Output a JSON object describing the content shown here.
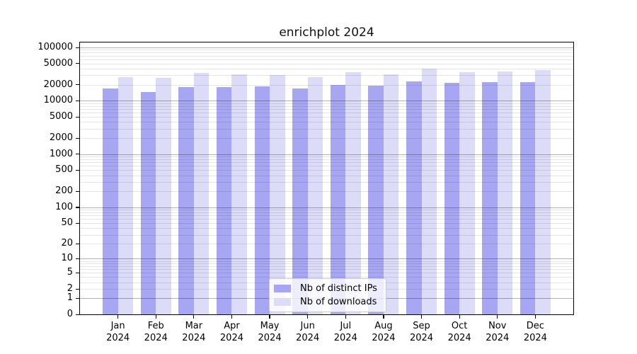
{
  "figure": {
    "title": "enrichplot 2024"
  },
  "chart_data": {
    "type": "bar",
    "title": "enrichplot 2024",
    "subtitle": "",
    "xlabel": "",
    "ylabel": "",
    "scale": "pseudo-log log10(value+1)",
    "grid": "horizontal major+minor",
    "legend_position": "lower center",
    "categories": [
      "Jan",
      "Feb",
      "Mar",
      "Apr",
      "May",
      "Jun",
      "Jul",
      "Aug",
      "Sep",
      "Oct",
      "Nov",
      "Dec"
    ],
    "category_year": "2024",
    "series": [
      {
        "name": "Nb of distinct IPs",
        "color": "#a6a6f3",
        "values": [
          17000,
          14700,
          18100,
          18100,
          18400,
          17000,
          20000,
          19000,
          23300,
          21700,
          22100,
          22100
        ]
      },
      {
        "name": "Nb of downloads",
        "color": "#dcdcf8",
        "values": [
          28200,
          26600,
          33300,
          31600,
          30700,
          27700,
          34300,
          31600,
          39500,
          34300,
          35000,
          37200
        ]
      }
    ],
    "yticks": [
      0,
      1,
      2,
      5,
      10,
      20,
      50,
      100,
      200,
      500,
      1000,
      2000,
      5000,
      10000,
      20000,
      50000,
      100000
    ],
    "ylim": [
      0,
      124000
    ],
    "colors": {
      "major_grid": "rgba(0,0,0,0.30)",
      "minor_grid": "rgba(0,0,0,0.10)",
      "spine": "#000000",
      "background": "#ffffff"
    }
  }
}
